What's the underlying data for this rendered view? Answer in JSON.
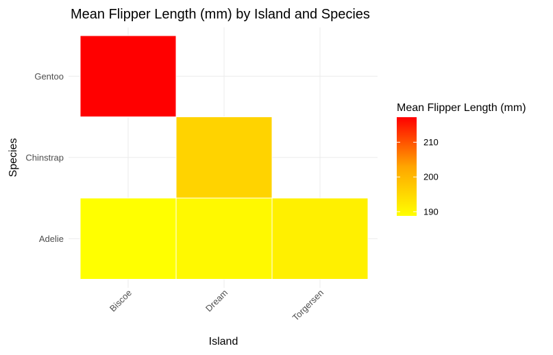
{
  "chart_data": {
    "type": "heatmap",
    "title": "Mean Flipper Length (mm) by Island and Species",
    "xlabel": "Island",
    "ylabel": "Species",
    "x_categories": [
      "Biscoe",
      "Dream",
      "Torgersen"
    ],
    "y_categories": [
      "Adelie",
      "Chinstrap",
      "Gentoo"
    ],
    "cells": [
      {
        "x": "Biscoe",
        "y": "Gentoo",
        "value": 217.2
      },
      {
        "x": "Dream",
        "y": "Chinstrap",
        "value": 195.8
      },
      {
        "x": "Biscoe",
        "y": "Adelie",
        "value": 188.8
      },
      {
        "x": "Dream",
        "y": "Adelie",
        "value": 189.7
      },
      {
        "x": "Torgersen",
        "y": "Adelie",
        "value": 191.2
      }
    ],
    "legend": {
      "title": "Mean Flipper Length (mm)",
      "ticks": [
        190,
        200,
        210
      ],
      "range": [
        188.8,
        217.2
      ],
      "low_color": "#FFFF00",
      "high_color": "#FF0000",
      "placement": "right"
    },
    "grid": true
  }
}
